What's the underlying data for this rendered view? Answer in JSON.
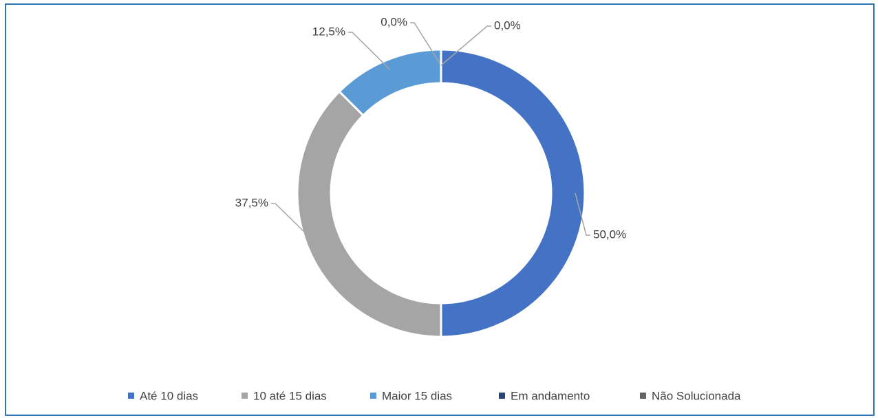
{
  "chart_data": {
    "type": "donut",
    "categories": [
      "Até 10 dias",
      "10 até 15 dias",
      "Maior 15 dias",
      "Em andamento",
      "Não Solucionada"
    ],
    "values": [
      50,
      37.5,
      12.5,
      0,
      0
    ],
    "value_labels": [
      "50,0%",
      "37,5%",
      "12,5%",
      "0,0%",
      "0,0%"
    ],
    "colors": [
      "#4472c4",
      "#a5a5a5",
      "#5b9bd5",
      "#264478",
      "#636363"
    ],
    "legend": "bottom"
  }
}
